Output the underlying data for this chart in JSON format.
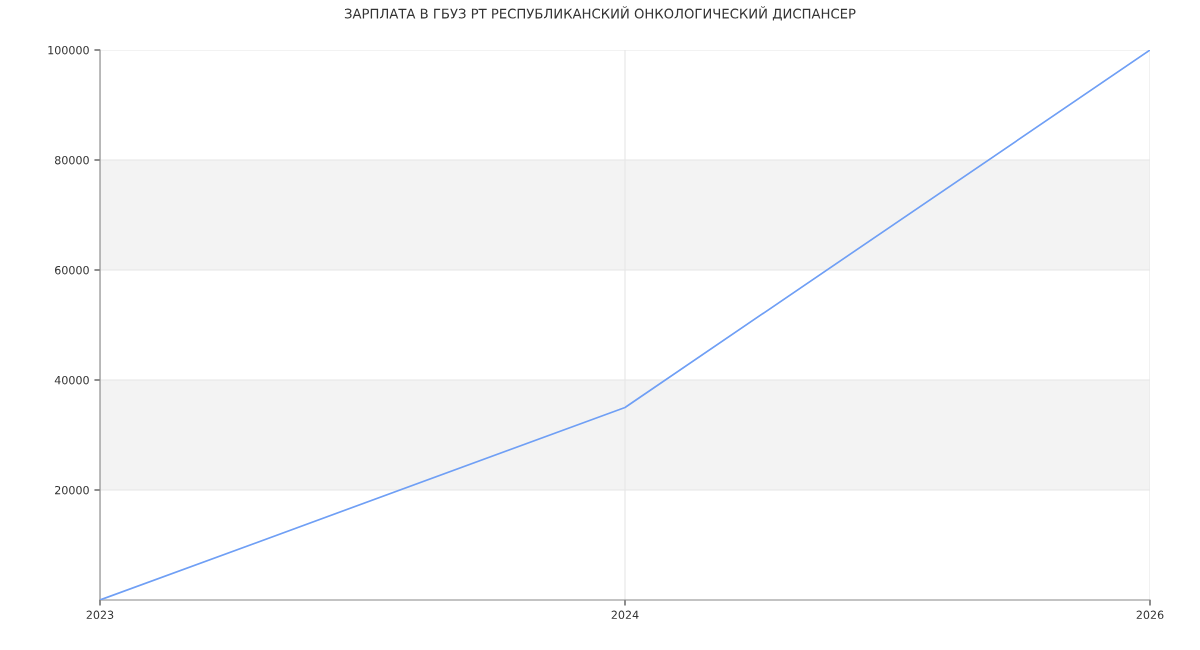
{
  "chart_data": {
    "type": "line",
    "title": "ЗАРПЛАТА В ГБУЗ РТ РЕСПУБЛИКАНСКИЙ ОНКОЛОГИЧЕСКИЙ ДИСПАНСЕР",
    "categories": [
      "2023",
      "2024",
      "2026"
    ],
    "series": [
      {
        "color": "#6f9ff5",
        "values": [
          0,
          35000,
          100000
        ]
      }
    ],
    "ylim": [
      0,
      100000
    ],
    "yticks": [
      20000,
      40000,
      60000,
      80000,
      100000
    ],
    "bands": [
      {
        "axis": "y",
        "from": 20000,
        "to": 40000,
        "color": "#f3f3f3"
      },
      {
        "axis": "y",
        "from": 60000,
        "to": 80000,
        "color": "#f3f3f3"
      }
    ],
    "grid": true,
    "marker": "none",
    "line_style": "solid"
  }
}
